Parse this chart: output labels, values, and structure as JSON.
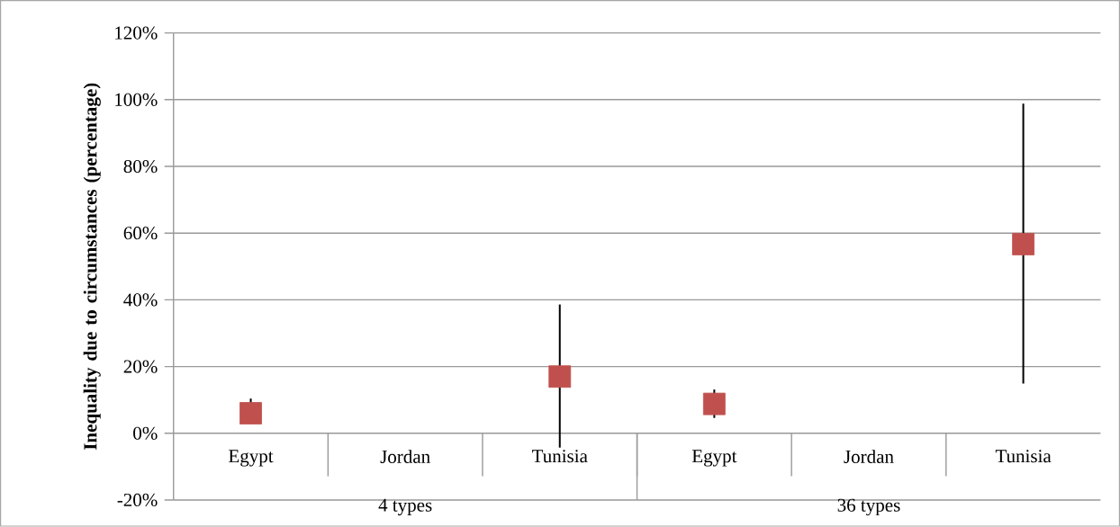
{
  "chart_data": {
    "type": "scatter",
    "ylabel": "Inequality due to circumstances (percentage)",
    "categories": [
      "Egypt",
      "Jordan",
      "Tunisia",
      "Egypt",
      "Jordan",
      "Tunisia"
    ],
    "values": [
      6,
      null,
      17,
      8.8,
      null,
      56.7
    ],
    "errors": [
      [
        2.8,
        10.4
      ],
      null,
      [
        -4.3,
        38.6
      ],
      [
        4.6,
        13.1
      ],
      null,
      [
        14.9,
        98.8
      ]
    ],
    "color": "#c0504d",
    "marker": "square",
    "grid": "y",
    "ylim": [
      -20,
      120
    ],
    "yticks": [
      {
        "value": -20,
        "label": "-20%"
      },
      {
        "value": 0,
        "label": "0%"
      },
      {
        "value": 20,
        "label": "20%"
      },
      {
        "value": 40,
        "label": "40%"
      },
      {
        "value": 60,
        "label": "60%"
      },
      {
        "value": 80,
        "label": "80%"
      },
      {
        "value": 100,
        "label": "100%"
      },
      {
        "value": 120,
        "label": "120%"
      }
    ],
    "annotations": [
      "4 types",
      "36 types"
    ]
  }
}
